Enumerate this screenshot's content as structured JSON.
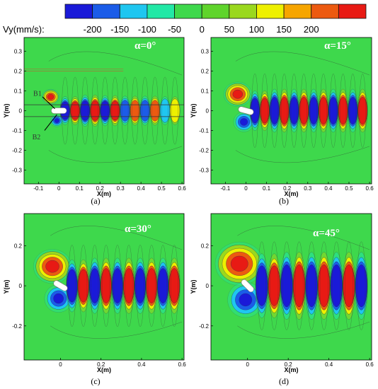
{
  "legend": {
    "label": "Vy(mm/s):",
    "ticks": [
      "-200",
      "-150",
      "-100",
      "-50",
      "0",
      "50",
      "100",
      "150",
      "200"
    ],
    "tick_values": [
      -200,
      -150,
      -100,
      -50,
      0,
      50,
      100,
      150,
      200
    ],
    "colors": [
      "#1a1ad8",
      "#1b5ce8",
      "#1fc6f0",
      "#22e8a6",
      "#3ed84c",
      "#5fd42c",
      "#9ad81e",
      "#eef000",
      "#f6a500",
      "#ec5a10",
      "#e81a14"
    ]
  },
  "panels": [
    {
      "id": "a",
      "caption": "(a)",
      "alpha_label": "α=0°",
      "alpha_deg": 0,
      "xlabel": "X(m)",
      "ylabel": "Y(m)",
      "xticks": [
        "-0.1",
        "0",
        "0.1",
        "0.2",
        "0.3",
        "0.4",
        "0.5",
        "0.6"
      ],
      "xtick_values": [
        -0.1,
        0,
        0.1,
        0.2,
        0.3,
        0.4,
        0.5,
        0.6
      ],
      "yticks": [
        "0.3",
        "0.2",
        "0.1",
        "0",
        "-0.1",
        "-0.2",
        "-0.3"
      ],
      "ytick_values": [
        0.3,
        0.2,
        0.1,
        0,
        -0.1,
        -0.2,
        -0.3
      ],
      "xlim": [
        -0.17,
        0.61
      ],
      "ylim": [
        -0.37,
        0.37
      ],
      "annotations": [
        "B1",
        "B2"
      ]
    },
    {
      "id": "b",
      "caption": "(b)",
      "alpha_label": "α=15°",
      "alpha_deg": 15,
      "xlabel": "X(m)",
      "ylabel": "Y(m)",
      "xticks": [
        "-0.1",
        "0",
        "0.1",
        "0.2",
        "0.3",
        "0.4",
        "0.5",
        "0.6"
      ],
      "xtick_values": [
        -0.1,
        0,
        0.1,
        0.2,
        0.3,
        0.4,
        0.5,
        0.6
      ],
      "yticks": [
        "0.3",
        "0.2",
        "0.1",
        "0",
        "-0.1",
        "-0.2",
        "-0.3"
      ],
      "ytick_values": [
        0.3,
        0.2,
        0.1,
        0,
        -0.1,
        -0.2,
        -0.3
      ],
      "xlim": [
        -0.17,
        0.61
      ],
      "ylim": [
        -0.37,
        0.37
      ],
      "annotations": []
    },
    {
      "id": "c",
      "caption": "(c)",
      "alpha_label": "α=30°",
      "alpha_deg": 30,
      "xlabel": "X(m)",
      "ylabel": "Y(m)",
      "xticks": [
        "0",
        "0.2",
        "0.4",
        "0.6"
      ],
      "xtick_values": [
        0,
        0.2,
        0.4,
        0.6
      ],
      "yticks": [
        "0.2",
        "0",
        "-0.2"
      ],
      "ytick_values": [
        0.2,
        0,
        -0.2
      ],
      "xlim": [
        -0.18,
        0.61
      ],
      "ylim": [
        -0.37,
        0.36
      ],
      "annotations": []
    },
    {
      "id": "d",
      "caption": "(d)",
      "alpha_label": "α=45°",
      "alpha_deg": 45,
      "xlabel": "X(m)",
      "ylabel": "Y(m)",
      "xticks": [
        "0",
        "0.2",
        "0.4",
        "0.6"
      ],
      "xtick_values": [
        0,
        0.2,
        0.4,
        0.6
      ],
      "yticks": [
        "0.2",
        "0",
        "-0.2"
      ],
      "ytick_values": [
        0.2,
        0,
        -0.2
      ],
      "xlim": [
        -0.18,
        0.61
      ],
      "ylim": [
        -0.37,
        0.36
      ],
      "annotations": []
    }
  ],
  "chart_data": {
    "type": "heatmap",
    "title": "",
    "colorbar_label": "Vy(mm/s):",
    "colorbar_ticks": [
      -200,
      -150,
      -100,
      -50,
      0,
      50,
      100,
      150,
      200
    ],
    "colorbar_range": [
      -225,
      225
    ],
    "panels": [
      {
        "caption": "(a)",
        "alpha_deg": 0,
        "xlabel": "X(m)",
        "ylabel": "Y(m)",
        "xlim": [
          -0.17,
          0.61
        ],
        "ylim": [
          -0.37,
          0.37
        ],
        "grid": false,
        "wake_peaks_mm_s": [
          -200,
          200,
          -200,
          200,
          -150,
          150,
          -100,
          100,
          -100,
          100,
          -50,
          50
        ]
      },
      {
        "caption": "(b)",
        "alpha_deg": 15,
        "xlabel": "X(m)",
        "ylabel": "Y(m)",
        "xlim": [
          -0.17,
          0.61
        ],
        "ylim": [
          -0.37,
          0.37
        ],
        "grid": false,
        "wake_peaks_mm_s": [
          -200,
          200,
          -200,
          200,
          -200,
          200,
          -200,
          200,
          -200,
          200,
          -200,
          200
        ]
      },
      {
        "caption": "(c)",
        "alpha_deg": 30,
        "xlabel": "X(m)",
        "ylabel": "Y(m)",
        "xlim": [
          -0.18,
          0.61
        ],
        "ylim": [
          -0.37,
          0.36
        ],
        "grid": false,
        "wake_peaks_mm_s": [
          -200,
          200,
          -200,
          200,
          -200,
          200,
          -200,
          200,
          -200,
          200
        ]
      },
      {
        "caption": "(d)",
        "alpha_deg": 45,
        "xlabel": "X(m)",
        "ylabel": "Y(m)",
        "xlim": [
          -0.18,
          0.61
        ],
        "ylim": [
          -0.37,
          0.36
        ],
        "grid": false,
        "wake_peaks_mm_s": [
          -200,
          200,
          -200,
          200,
          -200,
          200,
          -200,
          200,
          -200
        ]
      }
    ]
  }
}
